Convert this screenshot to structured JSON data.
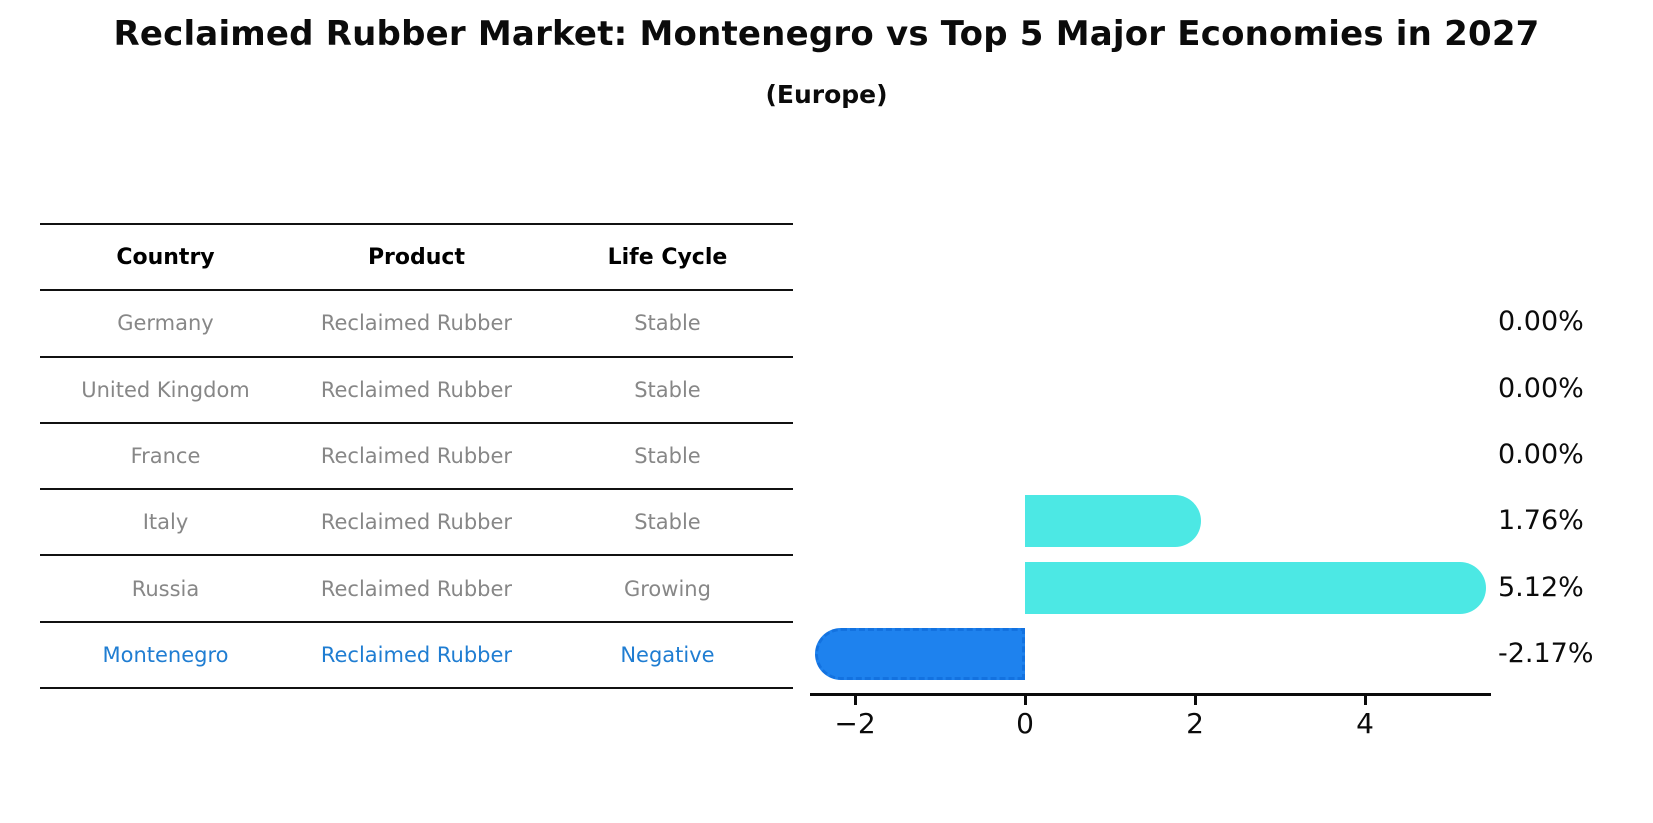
{
  "chart_data": {
    "type": "bar",
    "orientation": "horizontal",
    "title": "Reclaimed Rubber Market: Montenegro vs Top 5 Major Economies in 2027",
    "subtitle": "(Europe)",
    "categories": [
      "Germany",
      "United Kingdom",
      "France",
      "Italy",
      "Russia",
      "Montenegro"
    ],
    "values": [
      0.0,
      0.0,
      0.0,
      1.76,
      5.12,
      -2.17
    ],
    "value_labels": [
      "0.00%",
      "0.00%",
      "0.00%",
      "1.76%",
      "5.12%",
      "-2.17%"
    ],
    "unit": "%",
    "xticks": [
      -2,
      0,
      2,
      4
    ],
    "xtick_labels": [
      "−2",
      "0",
      "2",
      "4"
    ],
    "xlim": [
      -2.55,
      5.5
    ],
    "grid": false,
    "legend": null,
    "bar_color_positive": "#4CE8E4",
    "bar_color_highlight": "#1E82EE",
    "highlight_index": 5,
    "highlight_border_color": "#1372E0",
    "highlight_border_style": "dashed"
  },
  "table": {
    "columns": [
      "Country",
      "Product",
      "Life Cycle"
    ],
    "rows": [
      {
        "country": "Germany",
        "product": "Reclaimed Rubber",
        "life_cycle": "Stable",
        "highlighted": false
      },
      {
        "country": "United Kingdom",
        "product": "Reclaimed Rubber",
        "life_cycle": "Stable",
        "highlighted": false
      },
      {
        "country": "France",
        "product": "Reclaimed Rubber",
        "life_cycle": "Stable",
        "highlighted": false
      },
      {
        "country": "Italy",
        "product": "Reclaimed Rubber",
        "life_cycle": "Stable",
        "highlighted": false
      },
      {
        "country": "Russia",
        "product": "Reclaimed Rubber",
        "life_cycle": "Growing",
        "highlighted": false
      },
      {
        "country": "Montenegro",
        "product": "Reclaimed Rubber",
        "life_cycle": "Negative",
        "highlighted": true
      }
    ]
  },
  "colors": {
    "highlight_text": "#1F7DD2",
    "row_text": "#878787",
    "header_text": "#000000",
    "title_text": "#0B0B0B"
  }
}
